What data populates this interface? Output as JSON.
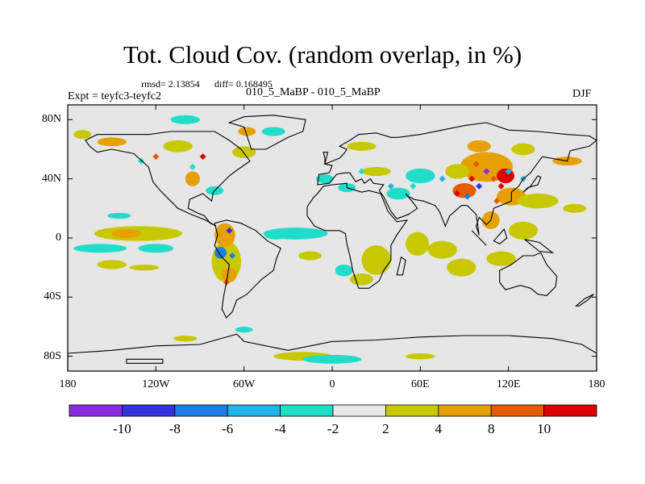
{
  "title": "Tot. Cloud Cov. (random overlap, in %)",
  "stats": {
    "rmsd_text": "rmsd= 2.13854",
    "diff_text": "diff= 0.168495"
  },
  "expt_label": "Expt = teyfc3-teyfc2",
  "period_label": "010_5_MaBP - 010_5_MaBP",
  "season": "DJF",
  "map": {
    "lat_ticks": [
      "80N",
      "40N",
      "0",
      "40S",
      "80S"
    ],
    "lon_ticks": [
      "180",
      "120W",
      "60W",
      "0",
      "60E",
      "120E",
      "180"
    ],
    "lon_range": [
      -180,
      180
    ],
    "lat_range": [
      -90,
      90
    ]
  },
  "colorbar": {
    "colors": [
      "#8a2be2",
      "#3333dd",
      "#1e7ee6",
      "#22b4e6",
      "#20dcc8",
      "#e8e8e8",
      "#c8c800",
      "#e6a000",
      "#e65a00",
      "#dd0000"
    ],
    "labels": [
      "-10",
      "-8",
      "-6",
      "-4",
      "-2",
      "2",
      "4",
      "8",
      "10"
    ]
  },
  "colors": {
    "background": "#e6e6e6",
    "coast": "#000000"
  }
}
